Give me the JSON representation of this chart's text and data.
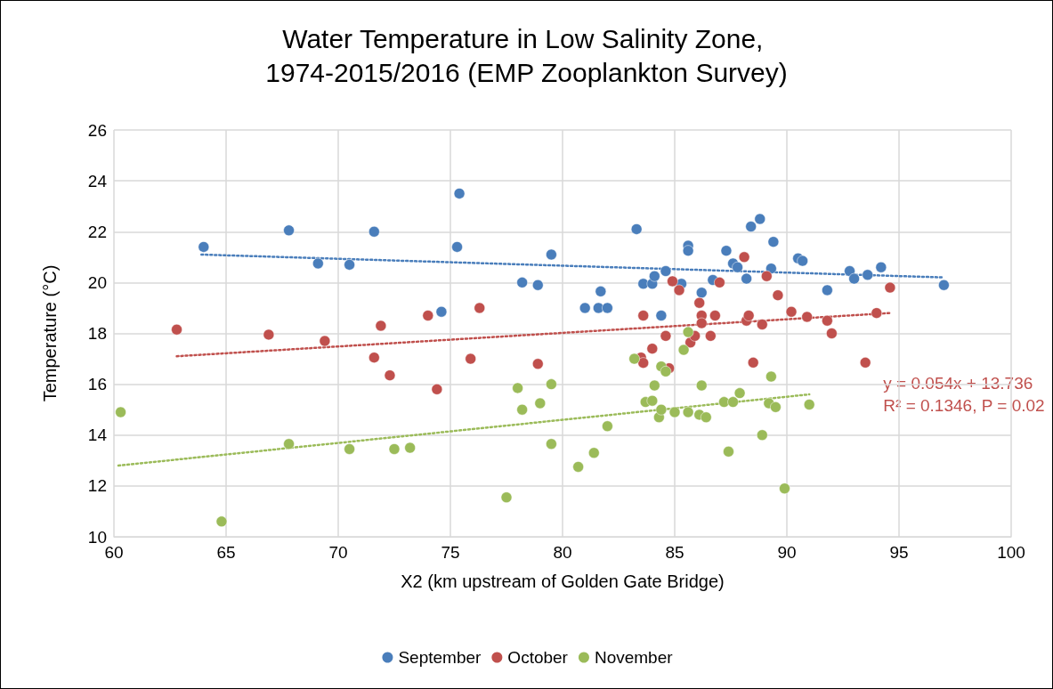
{
  "chart_data": {
    "type": "scatter",
    "title": "Water Temperature in Low Salinity Zone, 1974-2015/2016 (EMP Zooplankton Survey)",
    "xlabel": "X2 (km upstream of Golden Gate Bridge)",
    "ylabel": "Temperature (°C)",
    "xlim": [
      60,
      100
    ],
    "xticks": [
      60,
      65,
      70,
      75,
      80,
      85,
      90,
      95,
      100
    ],
    "ylim": [
      10,
      26
    ],
    "yticks": [
      10,
      12,
      14,
      16,
      18,
      20,
      22,
      24,
      26
    ],
    "grid": true,
    "legend": "bottom",
    "marker": "circle",
    "annotations": [
      "y = 0.054x + 13.736",
      "R² = 0.1346, P = 0.02"
    ],
    "series": [
      {
        "name": "September",
        "color": "#4a7ebb",
        "x": [
          64,
          67.8,
          69.1,
          70.5,
          71.6,
          74.6,
          75.3,
          75.4,
          78.2,
          78.9,
          79.5,
          81,
          81.6,
          81.7,
          82,
          83.3,
          83.6,
          84,
          84.1,
          84.4,
          84.6,
          85.3,
          85.6,
          85.6,
          86.2,
          86.7,
          87.3,
          87.6,
          87.8,
          88.2,
          88.4,
          88.8,
          89.3,
          89.4,
          90.5,
          90.7,
          91.8,
          92.8,
          93,
          93.6,
          94.2,
          97
        ],
        "values": [
          21.4,
          22.05,
          20.75,
          20.7,
          22,
          18.85,
          21.4,
          23.5,
          20,
          19.9,
          21.1,
          19,
          19,
          19.65,
          19,
          22.1,
          19.95,
          19.95,
          20.25,
          18.7,
          20.45,
          19.95,
          21.45,
          21.25,
          19.6,
          20.1,
          21.25,
          20.75,
          20.6,
          20.15,
          22.2,
          22.5,
          20.55,
          21.6,
          20.95,
          20.85,
          19.7,
          20.45,
          20.15,
          20.3,
          20.6,
          19.9
        ]
      },
      {
        "name": "October",
        "color": "#c0504d",
        "x": [
          62.8,
          66.9,
          69.4,
          71.6,
          71.9,
          72.3,
          74,
          74.4,
          75.9,
          76.3,
          78.9,
          83.6,
          83.5,
          83.6,
          84,
          84.75,
          84.6,
          84.9,
          85.2,
          85.7,
          85.9,
          86.1,
          86.2,
          86.2,
          86.6,
          86.8,
          87,
          88.1,
          88.2,
          88.3,
          88.5,
          88.9,
          89.1,
          89.6,
          90.2,
          90.9,
          91.8,
          92,
          93.5,
          94,
          94.6
        ],
        "values": [
          18.15,
          17.95,
          17.7,
          17.05,
          18.3,
          16.35,
          18.7,
          15.8,
          17,
          19,
          16.8,
          18.7,
          17.05,
          16.84,
          17.4,
          16.63,
          17.9,
          20.05,
          19.7,
          17.64,
          17.9,
          19.2,
          18.7,
          18.4,
          17.9,
          18.7,
          20,
          21,
          18.5,
          18.7,
          16.85,
          18.35,
          20.25,
          19.5,
          18.85,
          18.65,
          18.5,
          18,
          16.85,
          18.8,
          19.8
        ]
      },
      {
        "name": "November",
        "color": "#9bbb59",
        "x": [
          60.3,
          64.8,
          67.8,
          70.5,
          72.5,
          73.2,
          77.5,
          78,
          78.2,
          79,
          79.5,
          79.5,
          80.7,
          81.4,
          82,
          83.2,
          83.7,
          84,
          84.1,
          84.3,
          84.4,
          84.6,
          84.4,
          85,
          85.4,
          85.6,
          85.6,
          86.2,
          86.1,
          86.4,
          87.2,
          87.4,
          87.6,
          87.9,
          88.9,
          89.2,
          89.3,
          89.5,
          89.9,
          91
        ],
        "values": [
          14.9,
          10.6,
          13.65,
          13.45,
          13.45,
          13.5,
          11.55,
          15.85,
          15,
          15.25,
          16,
          13.65,
          12.75,
          13.3,
          14.35,
          17,
          15.3,
          15.35,
          15.95,
          14.7,
          16.7,
          16.5,
          15,
          14.9,
          17.35,
          18.05,
          14.9,
          15.95,
          14.8,
          14.7,
          15.3,
          13.35,
          15.3,
          15.65,
          14,
          15.25,
          16.3,
          15.1,
          11.9,
          15.2
        ]
      },
      {
        "type": "line",
        "color": "#4a7ebb",
        "line_style": "dotted",
        "marker": "none",
        "x": [
          63.9,
          97
        ],
        "values": [
          21.1,
          20.2
        ]
      },
      {
        "type": "line",
        "color": "#c0504d",
        "line_style": "dotted",
        "marker": "none",
        "x": [
          62.8,
          94.6
        ],
        "values": [
          17.1,
          18.8
        ]
      },
      {
        "type": "line",
        "color": "#9bbb59",
        "line_style": "dotted",
        "marker": "none",
        "x": [
          60.2,
          91
        ],
        "values": [
          12.8,
          15.6
        ]
      }
    ]
  }
}
